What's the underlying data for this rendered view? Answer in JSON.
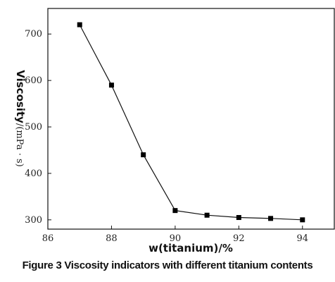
{
  "figure_caption": "Figure 3 Viscosity indicators with different titanium contents",
  "chart_data": {
    "type": "line",
    "title": "",
    "xlabel": "w(titanium)/%",
    "ylabel_bold": "Viscosity",
    "ylabel_unit": "/(mPa · s)",
    "xlim": [
      86,
      95
    ],
    "ylim": [
      280,
      755
    ],
    "xticks": [
      86,
      88,
      90,
      92,
      94
    ],
    "yticks": [
      300,
      400,
      500,
      600,
      700
    ],
    "grid": false,
    "marker": "square",
    "series": [
      {
        "x": [
          87,
          88,
          89,
          90,
          91,
          92,
          93,
          94
        ],
        "y": [
          720,
          590,
          440,
          320,
          310,
          305,
          303,
          300
        ]
      }
    ]
  }
}
